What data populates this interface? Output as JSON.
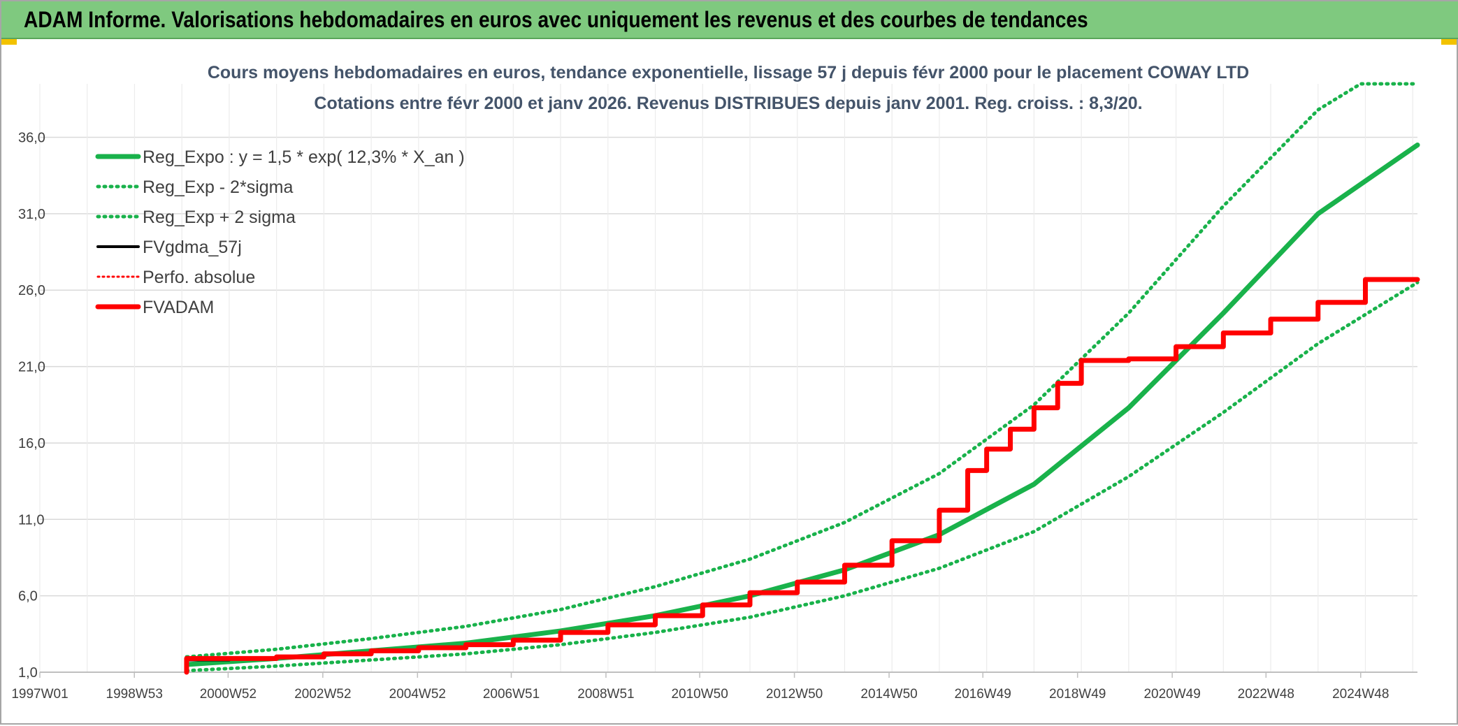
{
  "banner": {
    "title": "ADAM Informe. Valorisations hebdomadaires en euros avec uniquement les revenus et des courbes de tendances"
  },
  "colors": {
    "banner_bg": "#7fc97f",
    "trend_green": "#19b24b",
    "adam_red": "#ff0000",
    "fvgdma_black": "#000000",
    "grid": "#d9d9d9"
  },
  "chart_data": {
    "type": "line",
    "title": "Cours moyens hebdomadaires en euros, tendance exponentielle, lissage 57 j depuis févr 2000 pour le placement COWAY LTD",
    "subtitle": "Cotations entre févr 2000 et janv 2026. Revenus DISTRIBUES depuis janv 2001. Reg. croiss. : 8,3/20.",
    "xlabel": "",
    "ylabel": "",
    "x_range_years": [
      1997.0,
      2026.1
    ],
    "ylim": [
      1.0,
      39.5
    ],
    "y_ticks": [
      "1,0",
      "6,0",
      "11,0",
      "16,0",
      "21,0",
      "26,0",
      "31,0",
      "36,0"
    ],
    "x_ticks": [
      "1997W01",
      "1998W53",
      "2000W52",
      "2002W52",
      "2004W52",
      "2006W51",
      "2008W51",
      "2010W50",
      "2012W50",
      "2014W50",
      "2016W49",
      "2018W49",
      "2020W49",
      "2022W48",
      "2024W48"
    ],
    "grid": true,
    "legend_position": "top-left",
    "legend": [
      {
        "label": "Reg_Expo : y = 1,5 * exp( 12,3% *  X_an )",
        "style": "solid-green"
      },
      {
        "label": "Reg_Exp - 2*sigma",
        "style": "dotted-green"
      },
      {
        "label": "Reg_Exp + 2 sigma",
        "style": "dotted-green"
      },
      {
        "label": "FVgdma_57j",
        "style": "solid-black"
      },
      {
        "label": "Perfo. absolue",
        "style": "dotted-red"
      },
      {
        "label": "FVADAM",
        "style": "solid-red"
      }
    ],
    "series": [
      {
        "name": "Reg_Expo : y = 1,5 * exp( 12,3% *  X_an )",
        "x": [
          2000.1,
          2002.0,
          2004.0,
          2006.0,
          2008.0,
          2010.0,
          2012.0,
          2014.0,
          2016.0,
          2018.0,
          2020.0,
          2022.0,
          2024.0,
          2026.1
        ],
        "y": [
          1.5,
          1.9,
          2.4,
          2.9,
          3.7,
          4.7,
          6.0,
          7.7,
          10.0,
          13.3,
          18.3,
          24.5,
          31.0,
          35.5
        ]
      },
      {
        "name": "Reg_Exp - 2*sigma",
        "x": [
          2000.1,
          2002.0,
          2004.0,
          2006.0,
          2008.0,
          2010.0,
          2012.0,
          2014.0,
          2016.0,
          2018.0,
          2020.0,
          2022.0,
          2024.0,
          2026.1
        ],
        "y": [
          1.1,
          1.4,
          1.8,
          2.2,
          2.8,
          3.6,
          4.6,
          6.0,
          7.8,
          10.2,
          13.8,
          18.0,
          22.5,
          26.5
        ]
      },
      {
        "name": "Reg_Exp + 2 sigma",
        "x": [
          2000.1,
          2002.0,
          2004.0,
          2006.0,
          2008.0,
          2010.0,
          2012.0,
          2014.0,
          2016.0,
          2018.0,
          2020.0,
          2022.0,
          2024.0,
          2024.9,
          2026.1
        ],
        "y": [
          2.0,
          2.5,
          3.2,
          4.0,
          5.1,
          6.6,
          8.4,
          10.8,
          14.0,
          18.5,
          24.5,
          31.5,
          37.8,
          39.5,
          39.5
        ]
      },
      {
        "name": "FVgdma_57j",
        "x": [
          2000.1,
          2001.0,
          2002.0,
          2003.0,
          2004.0,
          2005.0,
          2006.0,
          2007.0,
          2008.0,
          2009.0,
          2010.0,
          2011.0,
          2012.0,
          2013.0,
          2014.0,
          2015.0,
          2016.0,
          2016.6,
          2017.0,
          2017.5,
          2018.0,
          2018.5,
          2019.0,
          2020.0,
          2021.0,
          2022.0,
          2023.0,
          2024.0,
          2025.0,
          2026.1
        ],
        "y": [
          1.8,
          1.9,
          2.0,
          2.2,
          2.4,
          2.6,
          2.8,
          3.1,
          3.6,
          4.1,
          4.7,
          5.4,
          6.2,
          6.9,
          8.0,
          9.6,
          11.6,
          14.2,
          15.6,
          16.9,
          18.3,
          19.9,
          21.4,
          21.5,
          22.3,
          23.2,
          24.1,
          25.2,
          26.7,
          26.7
        ]
      },
      {
        "name": "FVADAM",
        "x": [
          2000.1,
          2000.1,
          2001.0,
          2002.0,
          2003.0,
          2004.0,
          2005.0,
          2006.0,
          2007.0,
          2008.0,
          2009.0,
          2010.0,
          2011.0,
          2012.0,
          2013.0,
          2014.0,
          2015.0,
          2016.0,
          2016.6,
          2017.0,
          2017.5,
          2018.0,
          2018.5,
          2019.0,
          2020.0,
          2021.0,
          2022.0,
          2023.0,
          2024.0,
          2025.0,
          2026.1
        ],
        "y": [
          1.0,
          1.9,
          1.9,
          2.0,
          2.2,
          2.4,
          2.6,
          2.8,
          3.1,
          3.6,
          4.1,
          4.7,
          5.4,
          6.2,
          6.9,
          8.0,
          9.6,
          11.6,
          14.2,
          15.6,
          16.9,
          18.3,
          19.9,
          21.4,
          21.5,
          22.3,
          23.2,
          24.1,
          25.2,
          26.7,
          26.7
        ]
      }
    ]
  }
}
